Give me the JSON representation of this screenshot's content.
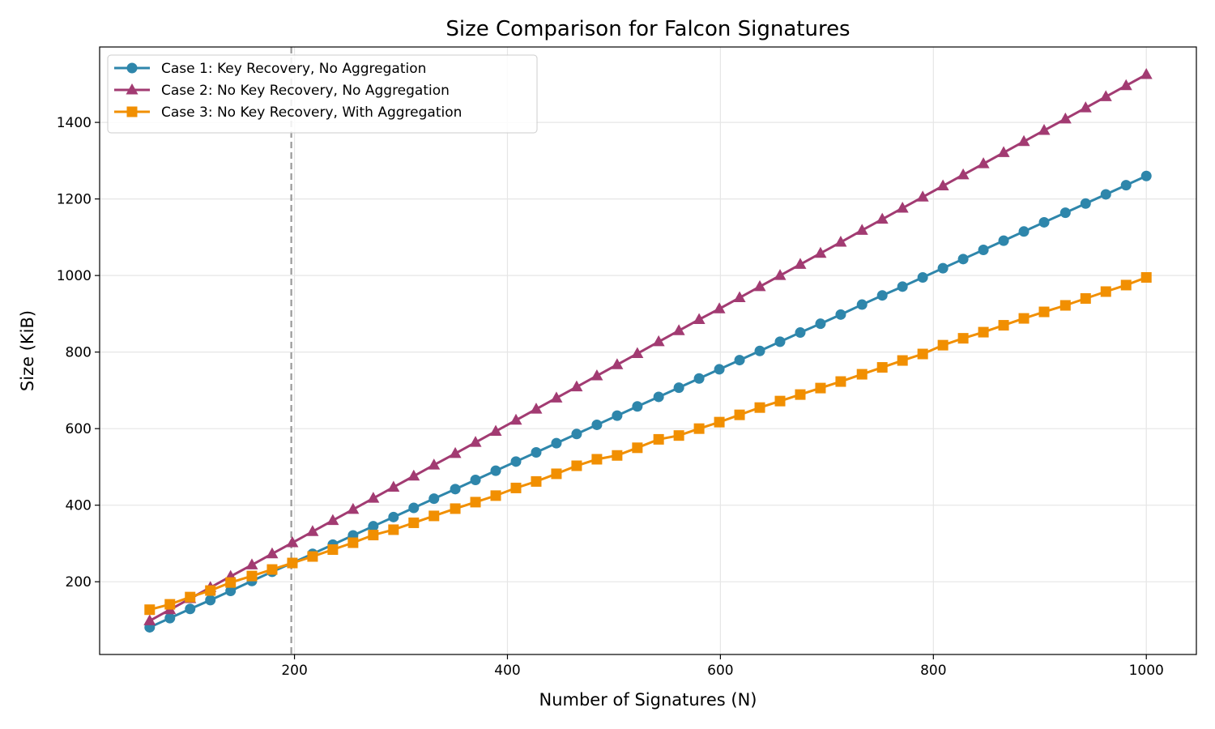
{
  "chart_data": {
    "type": "line",
    "title": "Size Comparison for Falcon Signatures",
    "xlabel": "Number of Signatures (N)",
    "ylabel": "Size (KiB)",
    "xlim": [
      17,
      1047
    ],
    "ylim": [
      10,
      1597
    ],
    "xticks": [
      200,
      400,
      600,
      800,
      1000
    ],
    "yticks": [
      200,
      400,
      600,
      800,
      1000,
      1200,
      1400
    ],
    "grid": true,
    "legend_position": "top-left",
    "vline": {
      "x": 197,
      "style": "dashed",
      "color": "#999999"
    },
    "x": [
      64,
      83,
      102,
      121,
      140,
      160,
      179,
      198,
      217,
      236,
      255,
      274,
      293,
      312,
      331,
      351,
      370,
      389,
      408,
      427,
      446,
      465,
      484,
      503,
      522,
      542,
      561,
      580,
      599,
      618,
      637,
      656,
      675,
      694,
      713,
      733,
      752,
      771,
      790,
      809,
      828,
      847,
      866,
      885,
      904,
      924,
      943,
      962,
      981,
      1000
    ],
    "series": [
      {
        "name": "Case 1: Key Recovery, No Aggregation",
        "color": "#2e86ab",
        "marker": "circle",
        "values": [
          81,
          105,
          129,
          152,
          176,
          202,
          226,
          249,
          273,
          297,
          321,
          345,
          369,
          393,
          417,
          442,
          466,
          490,
          514,
          538,
          562,
          586,
          610,
          634,
          658,
          683,
          707,
          731,
          755,
          779,
          803,
          827,
          851,
          874,
          898,
          924,
          948,
          971,
          995,
          1019,
          1043,
          1067,
          1091,
          1115,
          1139,
          1164,
          1188,
          1212,
          1236,
          1260
        ]
      },
      {
        "name": "Case 2: No Key Recovery, No Aggregation",
        "color": "#a23b72",
        "marker": "triangle",
        "values": [
          98,
          127,
          156,
          185,
          214,
          244,
          273,
          302,
          331,
          360,
          389,
          418,
          447,
          476,
          505,
          535,
          564,
          593,
          622,
          651,
          680,
          709,
          738,
          767,
          796,
          827,
          856,
          885,
          913,
          942,
          971,
          1000,
          1029,
          1058,
          1087,
          1118,
          1147,
          1176,
          1205,
          1234,
          1263,
          1292,
          1321,
          1350,
          1379,
          1409,
          1438,
          1467,
          1496,
          1525
        ]
      },
      {
        "name": "Case 3: No Key Recovery, With Aggregation",
        "color": "#f18f01",
        "marker": "square",
        "values": [
          127,
          141,
          160,
          177,
          198,
          215,
          232,
          249,
          266,
          284,
          302,
          322,
          336,
          354,
          372,
          391,
          408,
          425,
          445,
          462,
          482,
          503,
          520,
          530,
          550,
          572,
          582,
          600,
          617,
          636,
          655,
          672,
          689,
          706,
          723,
          742,
          760,
          778,
          795,
          818,
          836,
          852,
          870,
          888,
          905,
          922,
          940,
          958,
          975,
          995
        ]
      }
    ]
  }
}
